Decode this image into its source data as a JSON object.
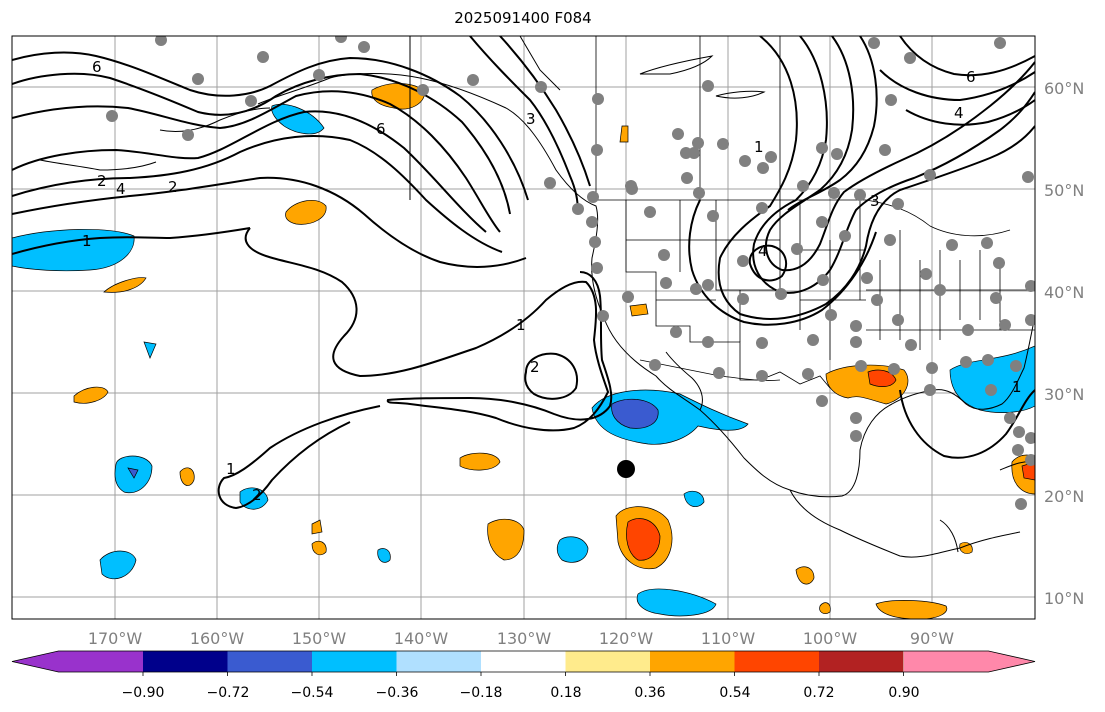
{
  "title": "2025091400 F084",
  "map": {
    "lon_ticks": [
      "170°W",
      "160°W",
      "150°W",
      "140°W",
      "130°W",
      "120°W",
      "110°W",
      "100°W",
      "90°W"
    ],
    "lat_ticks": [
      "60°N",
      "50°N",
      "40°N",
      "30°N",
      "20°N",
      "10°N"
    ],
    "contour_labels": [
      "6",
      "4",
      "2",
      "1",
      "6",
      "3",
      "2",
      "1",
      "6",
      "4",
      "1",
      "3",
      "2",
      "1",
      "2",
      "4",
      "1"
    ],
    "colors": {
      "contour": "#000000",
      "station_marker": "#808080",
      "center_marker": "#000000",
      "grid": "#a0a0a0",
      "coast": "#000000"
    }
  },
  "colorbar": {
    "tick_labels": [
      "−0.90",
      "−0.72",
      "−0.54",
      "−0.36",
      "−0.18",
      "0.18",
      "0.36",
      "0.54",
      "0.72",
      "0.90"
    ],
    "bin_colors": [
      "#9932cc",
      "#00008b",
      "#3a5bd0",
      "#00bfff",
      "#b0e0ff",
      "#ffffff",
      "#ffeb8c",
      "#ffa500",
      "#ff4500",
      "#b22222",
      "#ff88aa"
    ]
  }
}
